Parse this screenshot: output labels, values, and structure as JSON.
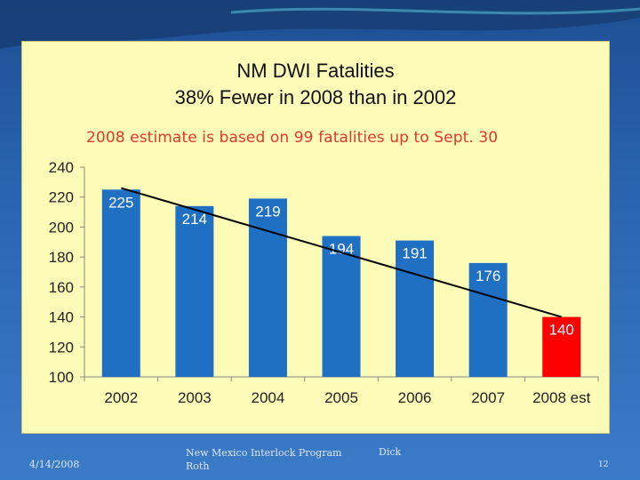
{
  "slide": {
    "footer_date": "4/14/2008",
    "footer_program": "New Mexico Interlock Program",
    "footer_author_first": "Dick",
    "footer_author_last": "Roth",
    "page_number": "12"
  },
  "colors": {
    "bar_blue": "#1f6fc3",
    "bar_red": "#ff0000",
    "subtitle_red": "#e2362e",
    "panel_bg": "#fdfbb8"
  },
  "chart_data": {
    "type": "bar",
    "title_line1": "NM DWI Fatalities",
    "title_line2": "38% Fewer in 2008 than in 2002",
    "subtitle": "2008 estimate is based on 99 fatalities up to Sept. 30",
    "categories": [
      "2002",
      "2003",
      "2004",
      "2005",
      "2006",
      "2007",
      "2008 est"
    ],
    "values": [
      225,
      214,
      219,
      194,
      191,
      176,
      140
    ],
    "highlight_index": 6,
    "ylim": [
      100,
      240
    ],
    "yticks": [
      100,
      120,
      140,
      160,
      180,
      200,
      220,
      240
    ],
    "trendline": {
      "start_value": 226,
      "end_value": 140
    },
    "xlabel": "",
    "ylabel": "",
    "grid": false,
    "legend": "none"
  }
}
